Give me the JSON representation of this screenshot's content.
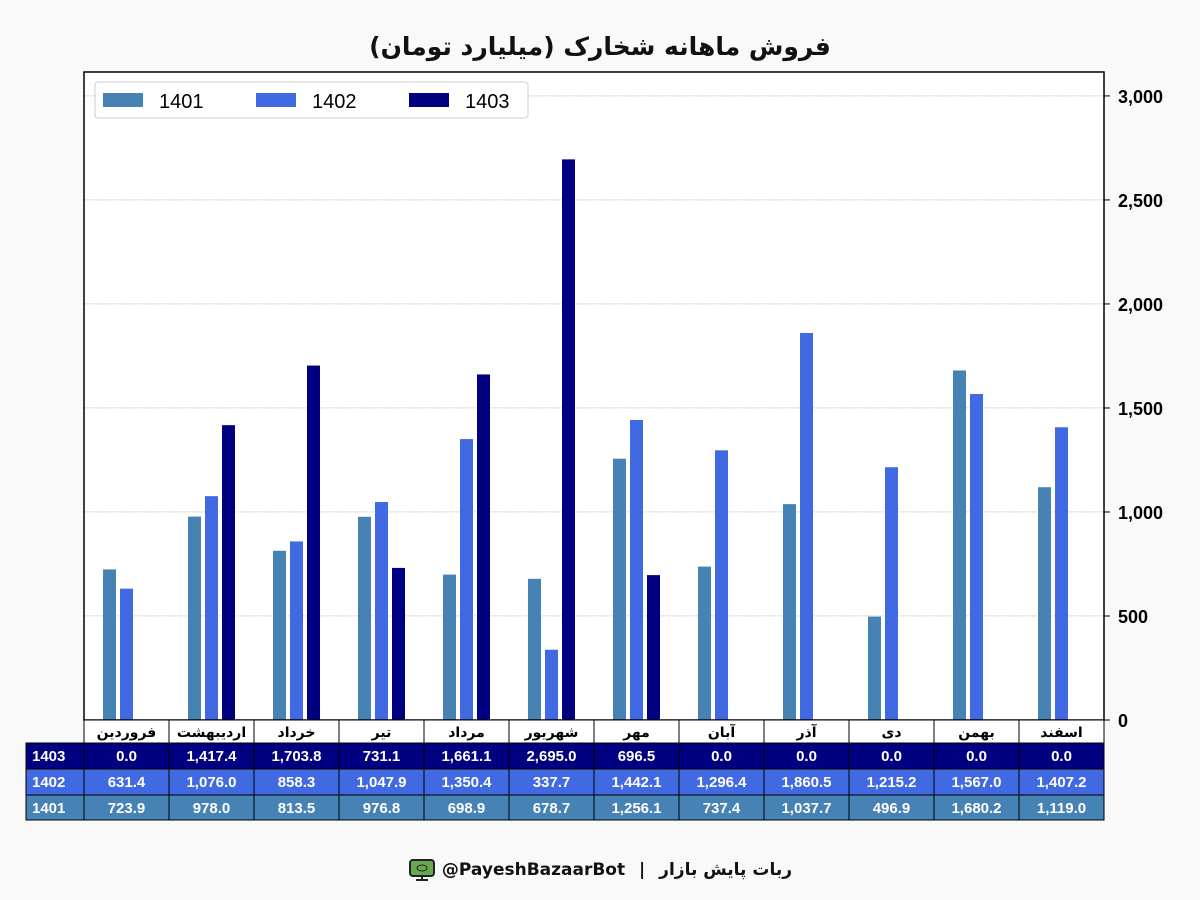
{
  "title": "فروش ماهانه شخارک (میلیارد تومان)",
  "chart_data": {
    "type": "bar",
    "title": "فروش ماهانه شخارک (میلیارد تومان)",
    "categories": [
      "فروردین",
      "اردیبهشت",
      "خرداد",
      "تیر",
      "مرداد",
      "شهریور",
      "مهر",
      "آبان",
      "آذر",
      "دی",
      "بهمن",
      "اسفند"
    ],
    "series": [
      {
        "name": "1401",
        "color": "#4682b4",
        "values": [
          723.9,
          978.0,
          813.5,
          976.8,
          698.9,
          678.7,
          1256.1,
          737.4,
          1037.7,
          496.9,
          1680.2,
          1119.0
        ],
        "labels": [
          "723.9",
          "978.0",
          "813.5",
          "976.8",
          "698.9",
          "678.7",
          "1,256.1",
          "737.4",
          "1,037.7",
          "496.9",
          "1,680.2",
          "1,119.0"
        ]
      },
      {
        "name": "1402",
        "color": "#4169e1",
        "values": [
          631.4,
          1076.0,
          858.3,
          1047.9,
          1350.4,
          337.7,
          1442.1,
          1296.4,
          1860.5,
          1215.2,
          1567.0,
          1407.2
        ],
        "labels": [
          "631.4",
          "1,076.0",
          "858.3",
          "1,047.9",
          "1,350.4",
          "337.7",
          "1,442.1",
          "1,296.4",
          "1,860.5",
          "1,215.2",
          "1,567.0",
          "1,407.2"
        ]
      },
      {
        "name": "1403",
        "color": "#000080",
        "values": [
          0.0,
          1417.4,
          1703.8,
          731.1,
          1661.1,
          2695.0,
          696.5,
          0.0,
          0.0,
          0.0,
          0.0,
          0.0
        ],
        "labels": [
          "0.0",
          "1,417.4",
          "1,703.8",
          "731.1",
          "1,661.1",
          "2,695.0",
          "696.5",
          "0.0",
          "0.0",
          "0.0",
          "0.0",
          "0.0"
        ]
      }
    ],
    "yticks": [
      "0",
      "500",
      "1,000",
      "1,500",
      "2,000",
      "2,500",
      "3,000"
    ],
    "ytick_values": [
      0,
      500,
      1000,
      1500,
      2000,
      2500,
      3000
    ],
    "ylim": [
      0,
      3115
    ],
    "yaxis_side": "right",
    "grid": true,
    "legend_position": "top-left",
    "table_row_order": [
      "1403",
      "1402",
      "1401"
    ]
  },
  "footer": {
    "bot_name": "ربات پایش بازار",
    "separator": "|",
    "handle": "@PayeshBazaarBot",
    "icon": "monitor-logo-icon"
  }
}
